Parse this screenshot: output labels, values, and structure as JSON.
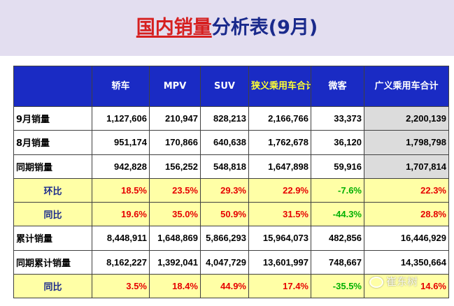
{
  "title": {
    "part1": "国内销量",
    "part2": "分析表",
    "part3": "(9月)"
  },
  "table": {
    "headers": [
      "",
      "轿车",
      "MPV",
      "SUV",
      "狭义乘用车合计",
      "微客",
      "广义乘用车合计"
    ],
    "rows": [
      {
        "label": "9月销量",
        "values": [
          "1,127,606",
          "210,947",
          "828,213",
          "2,166,766",
          "33,373",
          "2,200,139"
        ]
      },
      {
        "label": "8月销量",
        "values": [
          "951,174",
          "170,866",
          "640,638",
          "1,762,678",
          "36,120",
          "1,798,798"
        ]
      },
      {
        "label": "同期销量",
        "values": [
          "942,828",
          "156,252",
          "548,818",
          "1,647,898",
          "59,916",
          "1,707,814"
        ]
      },
      {
        "label": "环比",
        "values": [
          "18.5%",
          "23.5%",
          "29.3%",
          "22.9%",
          "-7.6%",
          "22.3%"
        ]
      },
      {
        "label": "同比",
        "values": [
          "19.6%",
          "35.0%",
          "50.9%",
          "31.5%",
          "-44.3%",
          "28.8%"
        ]
      },
      {
        "label": "累计销量",
        "values": [
          "8,448,911",
          "1,648,869",
          "5,866,293",
          "15,964,073",
          "482,856",
          "16,446,929"
        ]
      },
      {
        "label": "同期累计销量",
        "values": [
          "8,162,227",
          "1,392,041",
          "4,047,729",
          "13,601,997",
          "748,667",
          "14,350,664"
        ]
      },
      {
        "label": "同比",
        "values": [
          "3.5%",
          "18.4%",
          "44.9%",
          "17.4%",
          "-35.5%",
          "14.6%"
        ]
      }
    ]
  },
  "watermark": {
    "text": "崔东树"
  },
  "colors": {
    "header_bg": "#1a2bc4",
    "title_red": "#d62020",
    "title_blue": "#1a2a8c",
    "highlight_yellow": "#ffffa6",
    "positive_red": "#e60000",
    "negative_green": "#00b000",
    "total_gray": "#dcdcdc"
  }
}
